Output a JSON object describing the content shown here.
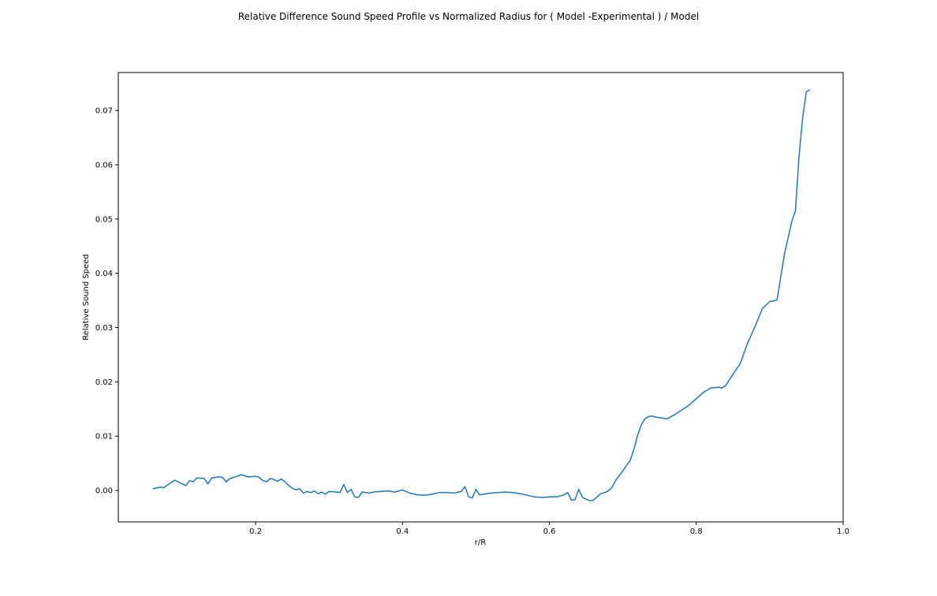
{
  "chart_data": {
    "type": "line",
    "title": "Relative Difference Sound Speed Profile vs Normalized Radius for ( Model -Experimental ) / Model",
    "xlabel": "r/R",
    "ylabel": "Relative Sound Speed",
    "xlim": [
      0.013,
      1.0
    ],
    "ylim": [
      -0.0058,
      0.077
    ],
    "xticks": [
      "0.2",
      "0.4",
      "0.6",
      "0.8",
      "1.0"
    ],
    "yticks": [
      "0.00",
      "0.01",
      "0.02",
      "0.03",
      "0.04",
      "0.05",
      "0.06",
      "0.07"
    ],
    "grid": false,
    "line_color": "#1f77b4",
    "series": [
      {
        "x": [
          0.06,
          0.07,
          0.075,
          0.08,
          0.09,
          0.1,
          0.105,
          0.11,
          0.115,
          0.12,
          0.13,
          0.135,
          0.14,
          0.15,
          0.155,
          0.16,
          0.165,
          0.175,
          0.18,
          0.19,
          0.2,
          0.205,
          0.21,
          0.215,
          0.22,
          0.225,
          0.23,
          0.235,
          0.24,
          0.245,
          0.25,
          0.255,
          0.26,
          0.265,
          0.27,
          0.275,
          0.28,
          0.285,
          0.29,
          0.295,
          0.3,
          0.31,
          0.315,
          0.32,
          0.325,
          0.33,
          0.335,
          0.34,
          0.345,
          0.35,
          0.355,
          0.36,
          0.37,
          0.38,
          0.39,
          0.4,
          0.41,
          0.42,
          0.43,
          0.44,
          0.45,
          0.46,
          0.47,
          0.48,
          0.485,
          0.49,
          0.495,
          0.5,
          0.505,
          0.51,
          0.52,
          0.53,
          0.54,
          0.55,
          0.56,
          0.57,
          0.58,
          0.59,
          0.6,
          0.61,
          0.62,
          0.625,
          0.63,
          0.635,
          0.64,
          0.645,
          0.65,
          0.655,
          0.66,
          0.665,
          0.67,
          0.675,
          0.68,
          0.685,
          0.69,
          0.7,
          0.705,
          0.71,
          0.715,
          0.72,
          0.725,
          0.73,
          0.735,
          0.74,
          0.745,
          0.75,
          0.755,
          0.76,
          0.77,
          0.78,
          0.79,
          0.8,
          0.81,
          0.82,
          0.83,
          0.835,
          0.84,
          0.85,
          0.86,
          0.87,
          0.88,
          0.89,
          0.9,
          0.905,
          0.91,
          0.92,
          0.93,
          0.935,
          0.94,
          0.945,
          0.95,
          0.955
        ],
        "y": [
          0.0003,
          0.0006,
          0.0005,
          0.001,
          0.0019,
          0.0012,
          0.0009,
          0.0018,
          0.0016,
          0.0023,
          0.0022,
          0.0012,
          0.0023,
          0.0025,
          0.0024,
          0.0016,
          0.0022,
          0.0026,
          0.0029,
          0.0025,
          0.0026,
          0.0024,
          0.0018,
          0.0016,
          0.0022,
          0.002,
          0.0017,
          0.0021,
          0.0016,
          0.0009,
          0.0004,
          0.0001,
          0.0003,
          -0.0005,
          -0.0002,
          -0.0004,
          -0.0001,
          -0.0006,
          -0.0003,
          -0.0007,
          -0.0002,
          -0.0003,
          -0.0004,
          0.0011,
          -0.0004,
          0.0002,
          -0.0012,
          -0.0013,
          -0.0003,
          -0.0004,
          -0.0005,
          -0.0003,
          -0.0002,
          -0.0001,
          -0.0003,
          0.0001,
          -0.0005,
          -0.0008,
          -0.0009,
          -0.0007,
          -0.0004,
          -0.0004,
          -0.0005,
          -0.0002,
          0.0007,
          -0.0012,
          -0.0014,
          0.0002,
          -0.0008,
          -0.0007,
          -0.0005,
          -0.0004,
          -0.0003,
          -0.0004,
          -0.0006,
          -0.0009,
          -0.0012,
          -0.0013,
          -0.0012,
          -0.0012,
          -0.0008,
          -0.0004,
          -0.0018,
          -0.0017,
          0.0002,
          -0.0013,
          -0.0016,
          -0.0019,
          -0.0018,
          -0.0012,
          -0.0006,
          -0.0004,
          -0.0001,
          0.0005,
          0.0018,
          0.0036,
          0.0046,
          0.0055,
          0.0075,
          0.0101,
          0.012,
          0.0132,
          0.0136,
          0.0137,
          0.0135,
          0.0134,
          0.0133,
          0.0132,
          0.0139,
          0.0148,
          0.0157,
          0.0169,
          0.0181,
          0.0189,
          0.019,
          0.0189,
          0.0193,
          0.0214,
          0.0234,
          0.0272,
          0.0302,
          0.0335,
          0.0348,
          0.0349,
          0.0351,
          0.0435,
          0.0495,
          0.0515,
          0.0616,
          0.0688,
          0.0735,
          0.0738
        ]
      }
    ]
  }
}
